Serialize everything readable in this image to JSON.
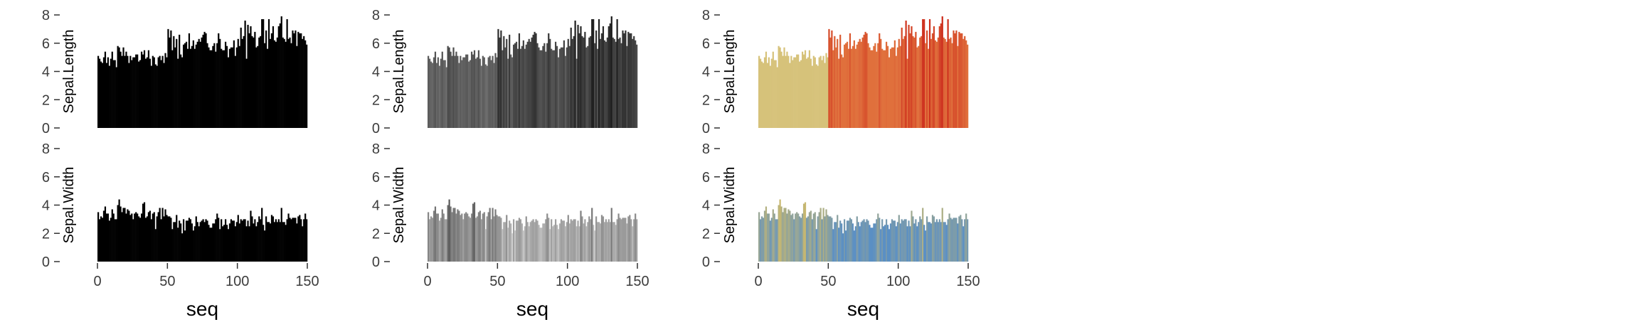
{
  "figure": {
    "panel_columns": [
      "mono",
      "grey",
      "color"
    ],
    "colors": {
      "mono": "#000000",
      "grey_length_low": "#6e6e6e",
      "grey_length_high": "#1a1a1a",
      "grey_width_low": "#d0d0d0",
      "grey_width_high": "#5a5a5a",
      "length_setosa": "#d6c27a",
      "length_other": "#e0703c",
      "length_high": "#cc2a1a",
      "width_low": "#5a8fc4",
      "width_high": "#c8b870"
    }
  },
  "chart_data": [
    {
      "type": "bar",
      "panel": "mono",
      "series": "Sepal.Length",
      "xlabel": "",
      "ylabel": "Sepal.Length",
      "ylim": [
        0,
        8
      ],
      "y_ticks": [
        "0",
        "2",
        "4",
        "6",
        "8"
      ],
      "x_ticks": [],
      "xlim": [
        0,
        150
      ],
      "x": "seq 1..150",
      "values_ref": "sepal_length"
    },
    {
      "type": "bar",
      "panel": "grey",
      "series": "Sepal.Length",
      "xlabel": "",
      "ylabel": "Sepal.Length",
      "ylim": [
        0,
        8
      ],
      "y_ticks": [
        "0",
        "2",
        "4",
        "6",
        "8"
      ],
      "x_ticks": [],
      "xlim": [
        0,
        150
      ],
      "values_ref": "sepal_length"
    },
    {
      "type": "bar",
      "panel": "color",
      "series": "Sepal.Length",
      "xlabel": "",
      "ylabel": "Sepal.Length",
      "ylim": [
        0,
        8
      ],
      "y_ticks": [
        "0",
        "2",
        "4",
        "6",
        "8"
      ],
      "x_ticks": [],
      "xlim": [
        0,
        150
      ],
      "values_ref": "sepal_length"
    },
    {
      "type": "bar",
      "panel": "mono",
      "series": "Sepal.Width",
      "xlabel": "seq",
      "ylabel": "Sepal.Width",
      "ylim": [
        0,
        8
      ],
      "y_ticks": [
        "0",
        "2",
        "4",
        "6",
        "8"
      ],
      "x_ticks": [
        "0",
        "50",
        "100",
        "150"
      ],
      "xlim": [
        0,
        150
      ],
      "values_ref": "sepal_width"
    },
    {
      "type": "bar",
      "panel": "grey",
      "series": "Sepal.Width",
      "xlabel": "seq",
      "ylabel": "Sepal.Width",
      "ylim": [
        0,
        8
      ],
      "y_ticks": [
        "0",
        "2",
        "4",
        "6",
        "8"
      ],
      "x_ticks": [
        "0",
        "50",
        "100",
        "150"
      ],
      "xlim": [
        0,
        150
      ],
      "values_ref": "sepal_width"
    },
    {
      "type": "bar",
      "panel": "color",
      "series": "Sepal.Width",
      "xlabel": "seq",
      "ylabel": "Sepal.Width",
      "ylim": [
        0,
        8
      ],
      "y_ticks": [
        "0",
        "2",
        "4",
        "6",
        "8"
      ],
      "x_ticks": [
        "0",
        "50",
        "100",
        "150"
      ],
      "xlim": [
        0,
        150
      ],
      "values_ref": "sepal_width"
    }
  ],
  "sepal_length": [
    5.1,
    4.9,
    4.7,
    4.6,
    5.0,
    5.4,
    4.6,
    5.0,
    4.4,
    4.9,
    5.4,
    4.8,
    4.8,
    4.3,
    5.8,
    5.7,
    5.4,
    5.1,
    5.7,
    5.1,
    5.4,
    5.1,
    4.6,
    5.1,
    4.8,
    5.0,
    5.0,
    5.2,
    5.2,
    4.7,
    4.8,
    5.4,
    5.2,
    5.5,
    4.9,
    5.0,
    5.5,
    4.9,
    4.4,
    5.1,
    5.0,
    4.5,
    4.4,
    5.0,
    5.1,
    4.8,
    5.1,
    4.6,
    5.3,
    5.0,
    7.0,
    6.4,
    6.9,
    5.5,
    6.5,
    5.7,
    6.3,
    4.9,
    6.6,
    5.2,
    5.0,
    5.9,
    6.0,
    6.1,
    5.6,
    6.7,
    5.6,
    5.8,
    6.2,
    5.6,
    5.9,
    6.1,
    6.3,
    6.1,
    6.4,
    6.6,
    6.8,
    6.7,
    6.0,
    5.7,
    5.5,
    5.5,
    5.8,
    6.0,
    5.4,
    6.0,
    6.7,
    6.3,
    5.6,
    5.5,
    5.5,
    6.1,
    5.8,
    5.0,
    5.6,
    5.7,
    5.7,
    6.2,
    5.1,
    5.7,
    6.3,
    5.8,
    7.1,
    6.3,
    6.5,
    7.6,
    4.9,
    7.3,
    6.7,
    7.2,
    6.5,
    6.4,
    6.8,
    5.7,
    5.8,
    6.4,
    6.5,
    7.7,
    7.7,
    6.0,
    6.9,
    5.6,
    7.7,
    6.3,
    6.7,
    7.2,
    6.2,
    6.1,
    6.4,
    7.2,
    7.4,
    7.9,
    6.4,
    6.3,
    6.1,
    7.7,
    6.3,
    6.4,
    6.0,
    6.9,
    6.7,
    6.9,
    5.8,
    6.8,
    6.7,
    6.7,
    6.3,
    6.5,
    6.2,
    5.9
  ],
  "sepal_width": [
    3.5,
    3.0,
    3.2,
    3.1,
    3.6,
    3.9,
    3.4,
    3.4,
    2.9,
    3.1,
    3.7,
    3.4,
    3.0,
    3.0,
    4.0,
    4.4,
    3.9,
    3.5,
    3.8,
    3.8,
    3.4,
    3.7,
    3.6,
    3.3,
    3.4,
    3.0,
    3.4,
    3.5,
    3.4,
    3.2,
    3.1,
    3.4,
    4.1,
    4.2,
    3.1,
    3.2,
    3.5,
    3.6,
    3.0,
    3.4,
    3.5,
    2.3,
    3.2,
    3.5,
    3.8,
    3.0,
    3.8,
    3.2,
    3.7,
    3.3,
    3.2,
    3.2,
    3.1,
    2.3,
    2.8,
    2.8,
    3.3,
    2.4,
    2.9,
    2.7,
    2.0,
    3.0,
    2.2,
    2.9,
    2.9,
    3.1,
    3.0,
    2.7,
    2.2,
    2.5,
    3.2,
    2.8,
    2.5,
    2.8,
    2.9,
    3.0,
    2.8,
    3.0,
    2.9,
    2.6,
    2.4,
    2.4,
    2.7,
    2.7,
    3.0,
    3.4,
    3.1,
    2.3,
    3.0,
    2.5,
    2.6,
    3.0,
    2.6,
    2.3,
    2.7,
    3.0,
    2.9,
    2.9,
    2.5,
    2.8,
    3.3,
    2.7,
    3.0,
    2.9,
    3.0,
    3.0,
    2.5,
    2.9,
    2.5,
    3.6,
    3.2,
    2.7,
    3.0,
    2.5,
    2.8,
    3.2,
    3.0,
    3.8,
    2.6,
    2.2,
    3.2,
    2.8,
    2.8,
    2.7,
    3.3,
    3.2,
    2.8,
    3.0,
    2.8,
    3.0,
    2.8,
    3.8,
    2.8,
    2.8,
    2.6,
    3.0,
    3.4,
    3.1,
    3.0,
    3.1,
    3.1,
    3.1,
    2.7,
    3.2,
    3.3,
    3.0,
    2.5,
    3.0,
    3.4,
    3.0
  ]
}
